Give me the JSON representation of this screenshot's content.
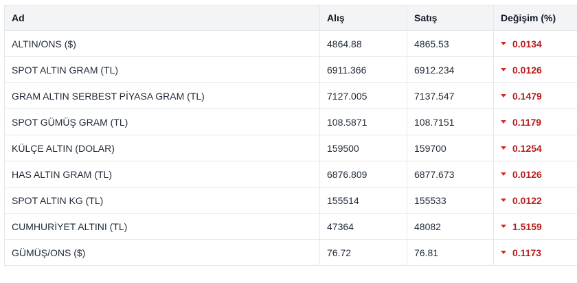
{
  "table": {
    "headers": {
      "name": "Ad",
      "buy": "Alış",
      "sell": "Satış",
      "change": "Değişim (%)"
    },
    "rows": [
      {
        "name": "ALTIN/ONS ($)",
        "buy": "4864.88",
        "sell": "4865.53",
        "change": "0.0134",
        "direction": "down"
      },
      {
        "name": "SPOT ALTIN GRAM (TL)",
        "buy": "6911.366",
        "sell": "6912.234",
        "change": "0.0126",
        "direction": "down"
      },
      {
        "name": "GRAM ALTIN SERBEST PİYASA GRAM (TL)",
        "buy": "7127.005",
        "sell": "7137.547",
        "change": "0.1479",
        "direction": "down"
      },
      {
        "name": "SPOT GÜMÜŞ GRAM (TL)",
        "buy": "108.5871",
        "sell": "108.7151",
        "change": "0.1179",
        "direction": "down"
      },
      {
        "name": "KÜLÇE ALTIN (DOLAR)",
        "buy": "159500",
        "sell": "159700",
        "change": "0.1254",
        "direction": "down"
      },
      {
        "name": "HAS ALTIN GRAM (TL)",
        "buy": "6876.809",
        "sell": "6877.673",
        "change": "0.0126",
        "direction": "down"
      },
      {
        "name": "SPOT ALTIN KG (TL)",
        "buy": "155514",
        "sell": "155533",
        "change": "0.0122",
        "direction": "down"
      },
      {
        "name": "CUMHURİYET ALTINI (TL)",
        "buy": "47364",
        "sell": "48082",
        "change": "1.5159",
        "direction": "down"
      },
      {
        "name": "GÜMÜŞ/ONS ($)",
        "buy": "76.72",
        "sell": "76.81",
        "change": "0.1173",
        "direction": "down"
      }
    ]
  },
  "colors": {
    "down_arrow": "#dc2626",
    "change_text": "#b91c1c",
    "header_bg": "#f3f4f6",
    "border": "#e5e7eb"
  },
  "icons": {
    "down": "caret-down-icon"
  }
}
